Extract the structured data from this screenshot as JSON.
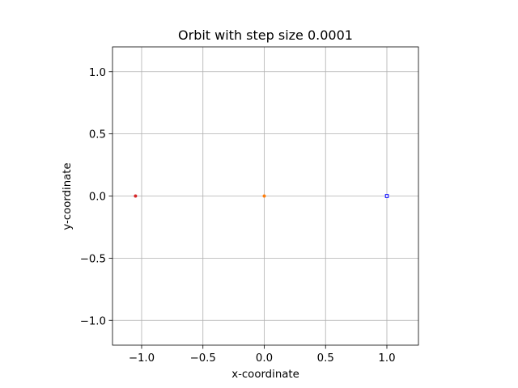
{
  "chart_data": {
    "type": "scatter",
    "title": "Orbit with step size 0.0001",
    "xlabel": "x-coordinate",
    "ylabel": "y-coordinate",
    "xlim": [
      -1.2375,
      1.2575
    ],
    "ylim": [
      -1.2,
      1.2
    ],
    "xticks": [
      -1.0,
      -0.5,
      0.0,
      0.5,
      1.0
    ],
    "yticks": [
      -1.0,
      -0.5,
      0.0,
      0.5,
      1.0
    ],
    "xtick_labels": [
      "−1.0",
      "−0.5",
      "0.0",
      "0.5",
      "1.0"
    ],
    "ytick_labels": [
      "−1.0",
      "−0.5",
      "0.0",
      "0.5",
      "1.0"
    ],
    "grid": true,
    "legend": "none",
    "series": [
      {
        "x": [
          -1.05
        ],
        "y": [
          0.0
        ],
        "color": "#d62728",
        "marker": "dot"
      },
      {
        "x": [
          0.0
        ],
        "y": [
          0.0
        ],
        "color": "#ff7f0e",
        "marker": "dot"
      },
      {
        "x": [
          1.0
        ],
        "y": [
          0.0
        ],
        "color": "#0000ff",
        "marker": "open-square"
      }
    ]
  }
}
